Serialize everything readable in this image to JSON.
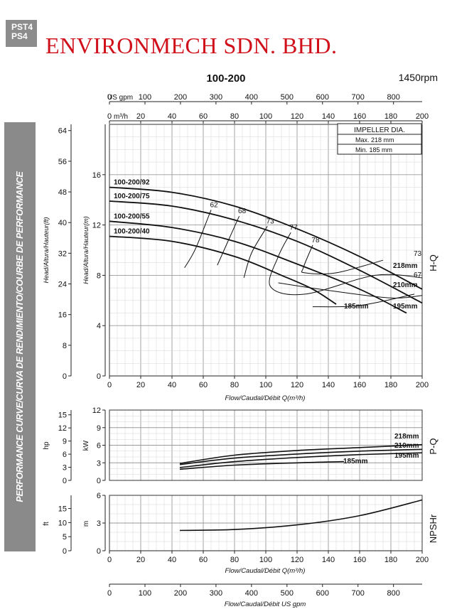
{
  "badge": {
    "line1": "PST4",
    "line2": "PS4"
  },
  "company": "ENVIRONMECH SDN. BHD.",
  "model": "100-200",
  "speed": "1450rpm",
  "sidebar_title": "PERFORMANCE CURVE/CURVA DE RENDIMIENTO/COURBE DE PERFORMANCE",
  "colors": {
    "grid": "#9a9a9a",
    "minor": "#d6d6d6",
    "curve": "#111111",
    "accent": "#d0101a",
    "sidebar": "#8a8a8a"
  },
  "chart_data": {
    "type": "line",
    "flow_unit_label": "m³/h",
    "us_gpm_label": "US gpm",
    "top_flow_ticks": [
      0,
      20,
      40,
      60,
      80,
      100,
      120,
      140,
      160,
      180,
      200
    ],
    "gpm_ticks": [
      0,
      100,
      200,
      300,
      400,
      500,
      600,
      700,
      800
    ],
    "impeller_box": {
      "title": "IMPELLER DIA.",
      "max": "Max.  218 mm",
      "min": "Min.   185 mm"
    },
    "hq": {
      "xlabel": "Flow/Caudal/Débit Q(m³/h)",
      "ylabel_m": "Head/Altura/Hauteur(m)",
      "ylabel_ft": "Head/Altura/Hauteur(ft)",
      "side_label": "H-Q",
      "xlim": [
        0,
        200
      ],
      "ylim": [
        0,
        20
      ],
      "m_ticks": [
        0,
        4,
        8,
        12,
        16
      ],
      "ft_ticks": [
        0,
        8,
        16,
        24,
        32,
        40,
        48,
        56,
        64
      ],
      "x_ticks": [
        0,
        20,
        40,
        60,
        80,
        100,
        120,
        140,
        160,
        180,
        200
      ],
      "series": [
        {
          "name": "100-200/92",
          "end_label": "218mm",
          "points": [
            [
              0,
              15.0
            ],
            [
              40,
              14.6
            ],
            [
              80,
              13.5
            ],
            [
              120,
              11.7
            ],
            [
              160,
              9.5
            ],
            [
              200,
              6.9
            ]
          ]
        },
        {
          "name": "100-200/75",
          "end_label": "210mm",
          "points": [
            [
              0,
              13.9
            ],
            [
              40,
              13.5
            ],
            [
              80,
              12.4
            ],
            [
              120,
              10.7
            ],
            [
              160,
              8.4
            ],
            [
              200,
              5.8
            ]
          ]
        },
        {
          "name": "100-200/55",
          "end_label": "195mm",
          "points": [
            [
              0,
              12.3
            ],
            [
              40,
              11.8
            ],
            [
              80,
              10.7
            ],
            [
              120,
              8.9
            ],
            [
              160,
              6.9
            ],
            [
              190,
              5.0
            ]
          ]
        },
        {
          "name": "100-200/40",
          "end_label": "185mm",
          "points": [
            [
              0,
              11.1
            ],
            [
              40,
              10.7
            ],
            [
              80,
              9.5
            ],
            [
              110,
              8.0
            ],
            [
              130,
              6.9
            ],
            [
              145,
              5.7
            ]
          ]
        }
      ],
      "efficiency": [
        {
          "label": "62",
          "points": [
            [
              65,
              13.2
            ],
            [
              55,
              10.1
            ],
            [
              48,
              8.6
            ]
          ]
        },
        {
          "label": "68",
          "points": [
            [
              83,
              12.7
            ],
            [
              74,
              10.2
            ],
            [
              69,
              8.8
            ]
          ]
        },
        {
          "label": "73",
          "points": [
            [
              101,
              11.9
            ],
            [
              91,
              9.8
            ],
            [
              86,
              7.8
            ]
          ]
        },
        {
          "label": "77",
          "points": [
            [
              116,
              11.4
            ],
            [
              108,
              9.5
            ],
            [
              103,
              7.1
            ],
            [
              125,
              6.5
            ],
            [
              170,
              8.0
            ],
            [
              200,
              7.8
            ]
          ]
        },
        {
          "label": "78",
          "points": [
            [
              130,
              10.4
            ],
            [
              124,
              8.6
            ],
            [
              125,
              8.2
            ],
            [
              145,
              8.2
            ],
            [
              175,
              9.2
            ]
          ]
        },
        {
          "label": "73",
          "points": [
            [
              108,
              7.4
            ],
            [
              140,
              6.8
            ],
            [
              180,
              6.2
            ],
            [
              200,
              6.4
            ]
          ]
        },
        {
          "label": "67",
          "points": [
            [
              130,
              5.5
            ],
            [
              160,
              5.6
            ],
            [
              195,
              6.5
            ]
          ]
        }
      ],
      "eff_right_labels": [
        "73",
        "67"
      ]
    },
    "pq": {
      "side_label": "P-Q",
      "ylabel_kw": "kW",
      "ylabel_hp": "hp",
      "ylim": [
        0,
        12
      ],
      "kw_ticks": [
        0,
        3,
        6,
        9,
        12
      ],
      "hp_ticks": [
        0,
        3,
        6,
        9,
        12,
        15
      ],
      "series": [
        {
          "name": "218mm",
          "points": [
            [
              45,
              2.9
            ],
            [
              80,
              4.3
            ],
            [
              120,
              5.1
            ],
            [
              160,
              5.6
            ],
            [
              200,
              6.1
            ]
          ]
        },
        {
          "name": "210mm",
          "points": [
            [
              45,
              2.7
            ],
            [
              80,
              3.8
            ],
            [
              120,
              4.5
            ],
            [
              160,
              5.0
            ],
            [
              200,
              5.3
            ]
          ]
        },
        {
          "name": "195mm",
          "points": [
            [
              45,
              2.2
            ],
            [
              80,
              3.2
            ],
            [
              120,
              3.9
            ],
            [
              160,
              4.4
            ],
            [
              200,
              4.7
            ]
          ]
        },
        {
          "name": "185mm",
          "points": [
            [
              45,
              1.9
            ],
            [
              80,
              2.6
            ],
            [
              120,
              3.0
            ],
            [
              150,
              3.2
            ]
          ]
        }
      ]
    },
    "npsh": {
      "side_label": "NPSHr",
      "ylabel_m": "m",
      "ylabel_ft": "ft",
      "xlabel": "Flow/Caudal/Débit Q(m³/h)",
      "ylim": [
        0,
        6
      ],
      "m_ticks": [
        0,
        3,
        6
      ],
      "ft_ticks": [
        0,
        5,
        10,
        15
      ],
      "x_ticks": [
        0,
        20,
        40,
        60,
        80,
        100,
        120,
        140,
        160,
        180,
        200
      ],
      "points": [
        [
          45,
          2.2
        ],
        [
          80,
          2.3
        ],
        [
          120,
          2.8
        ],
        [
          160,
          3.8
        ],
        [
          200,
          5.5
        ]
      ]
    },
    "gpm_axis": {
      "xlabel": "Flow/Caudal/Débit  US gpm",
      "ticks": [
        0,
        100,
        200,
        300,
        400,
        500,
        600,
        700,
        800
      ]
    }
  }
}
